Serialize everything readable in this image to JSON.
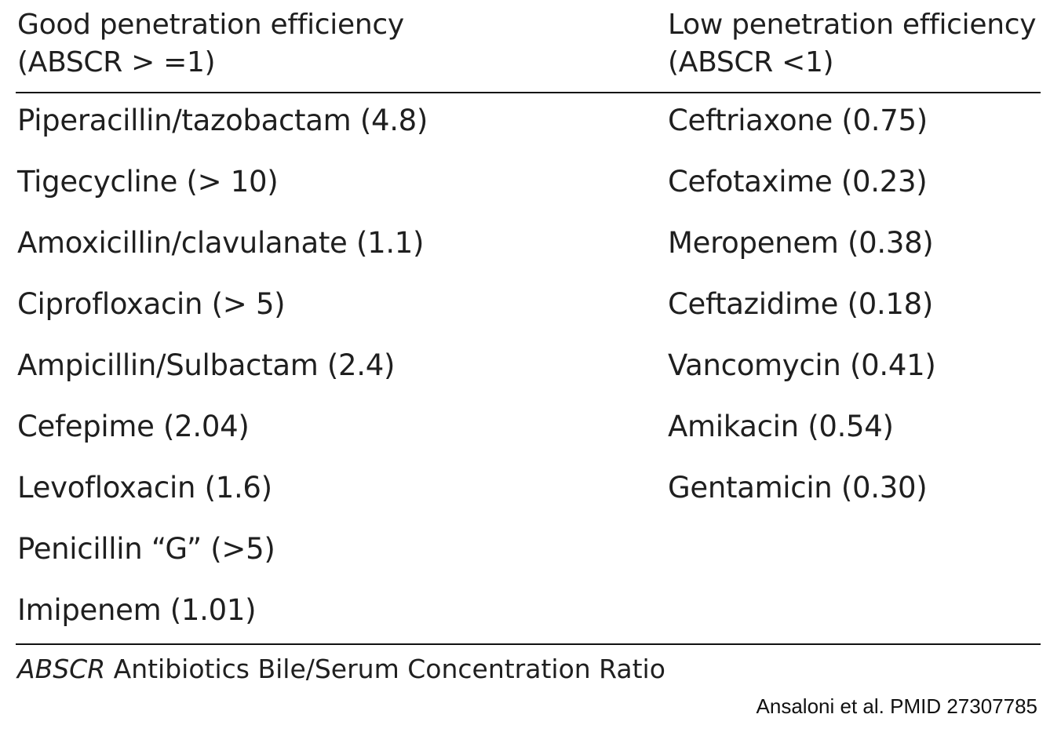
{
  "table": {
    "header": {
      "left": {
        "line1": "Good penetration efficiency",
        "line2": "(ABSCR > =1)"
      },
      "right": {
        "line1": "Low penetration efficiency",
        "line2": "(ABSCR <1)"
      }
    },
    "rows": [
      {
        "left": "Piperacillin/tazobactam (4.8)",
        "right": "Ceftriaxone (0.75)"
      },
      {
        "left": "Tigecycline (> 10)",
        "right": "Cefotaxime (0.23)"
      },
      {
        "left": "Amoxicillin/clavulanate (1.1)",
        "right": "Meropenem (0.38)"
      },
      {
        "left": "Ciprofloxacin (> 5)",
        "right": "Ceftazidime (0.18)"
      },
      {
        "left": "Ampicillin/Sulbactam (2.4)",
        "right": "Vancomycin (0.41)"
      },
      {
        "left": "Cefepime (2.04)",
        "right": "Amikacin (0.54)"
      },
      {
        "left": "Levofloxacin (1.6)",
        "right": "Gentamicin (0.30)"
      },
      {
        "left": "Penicillin “G” (>5)",
        "right": ""
      },
      {
        "left": "Imipenem (1.01)",
        "right": ""
      }
    ],
    "footnote": {
      "abbreviation": "ABSCR",
      "definition": " Antibiotics Bile/Serum Concentration Ratio"
    }
  },
  "citation": "Ansaloni et al. PMID  27307785"
}
